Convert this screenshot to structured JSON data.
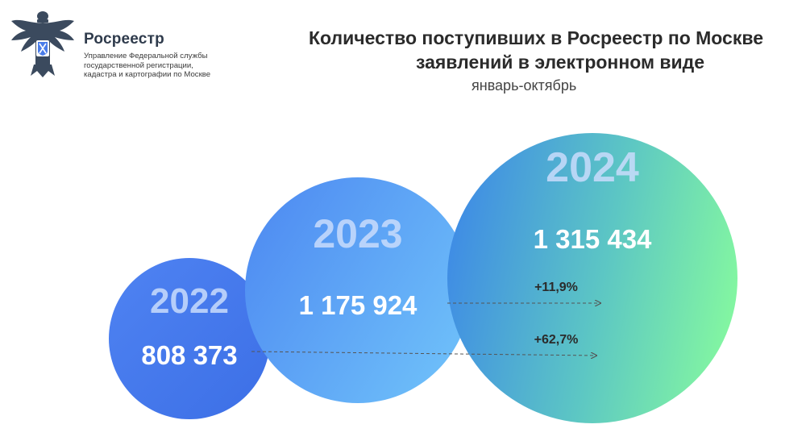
{
  "header": {
    "org_name": "Росреестр",
    "org_desc_lines": [
      "Управление Федеральной службы",
      "государственной регистрации,",
      "кадастра и картографии по Москве"
    ],
    "title_line1": "Количество поступивших в Росреестр по Москве",
    "title_line2": "заявлений в электронном виде",
    "subtitle": "январь-октябрь"
  },
  "chart_data": {
    "type": "bubble",
    "title": "Количество поступивших в Росреестр по Москве заявлений в электронном виде",
    "subtitle": "январь-октябрь",
    "categories": [
      "2022",
      "2023",
      "2024"
    ],
    "values": [
      808373,
      1175924,
      1315434
    ],
    "value_labels": [
      "808 373",
      "1 175 924",
      "1 315 434"
    ],
    "annotations": [
      {
        "from": "2023",
        "to": "2024",
        "label": "+11,9%"
      },
      {
        "from": "2022",
        "to": "2024",
        "label": "+62,7%"
      }
    ],
    "colors": {
      "bubble_2022": [
        "#4a7df0",
        "#3f74ea"
      ],
      "bubble_2023": [
        "#4f8ef3",
        "#67b4f8"
      ],
      "bubble_2024": [
        "#3f8fe6",
        "#7ef2a4"
      ],
      "year_text": "#c9dcfb"
    }
  }
}
